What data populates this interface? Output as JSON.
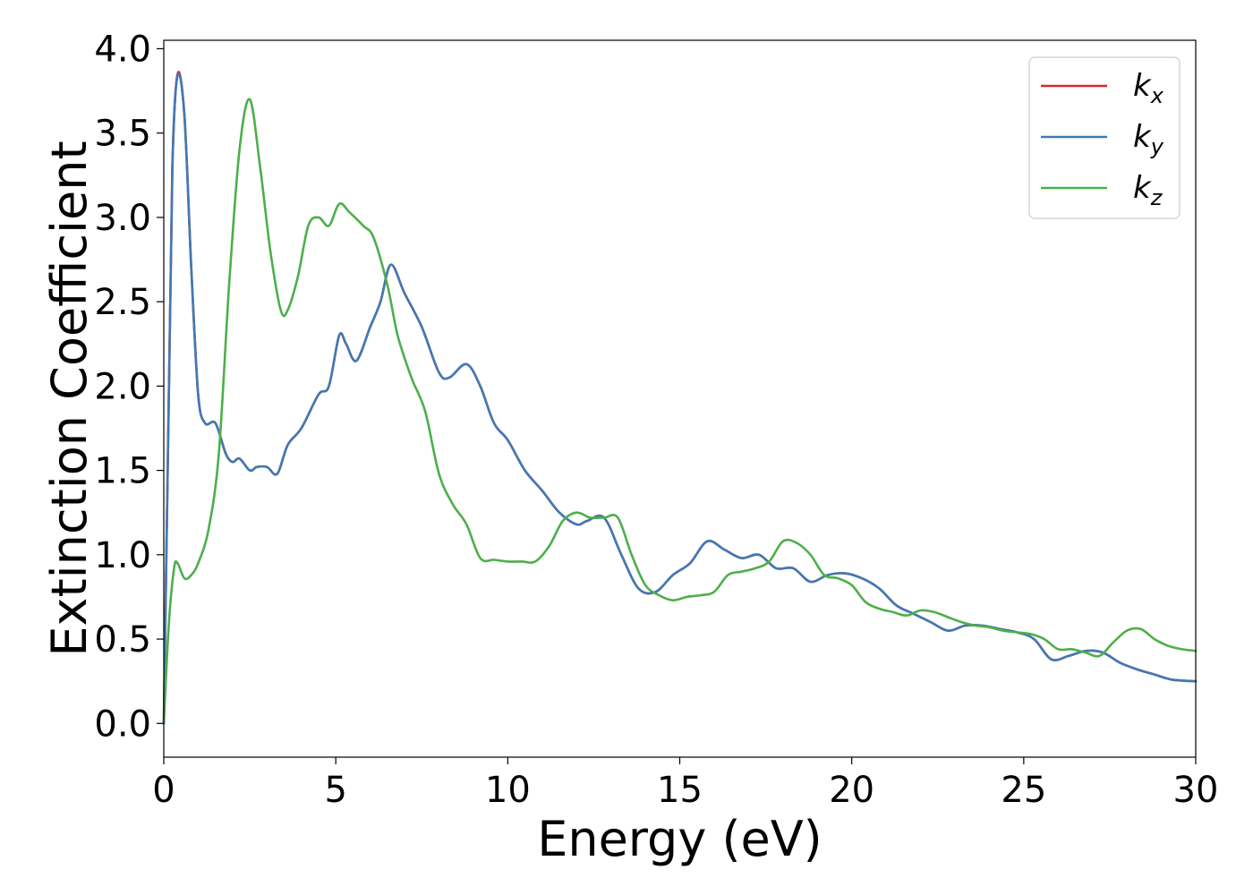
{
  "chart_data": {
    "type": "line",
    "title": "",
    "xlabel": "Energy (eV)",
    "ylabel": "Extinction Coefficient",
    "xlim": [
      0,
      30
    ],
    "ylim": [
      -0.2,
      4.05
    ],
    "xticks": [
      "0",
      "5",
      "10",
      "15",
      "20",
      "25",
      "30"
    ],
    "yticks": [
      "0.0",
      "0.5",
      "1.0",
      "1.5",
      "2.0",
      "2.5",
      "3.0",
      "3.5",
      "4.0"
    ],
    "grid": false,
    "legend_position": "top-right",
    "series": [
      {
        "name": "k",
        "subscript": "x",
        "color": "#d62728",
        "x": [
          0,
          0.15,
          0.25,
          0.4,
          0.6,
          0.8,
          1.0,
          1.2,
          1.5,
          1.8,
          2.0,
          2.2,
          2.5,
          2.7,
          3.0,
          3.3,
          3.6,
          4.0,
          4.5,
          4.8,
          5.1,
          5.3,
          5.6,
          6.0,
          6.3,
          6.6,
          7.0,
          7.5,
          8.0,
          8.3,
          8.8,
          9.2,
          9.6,
          10.0,
          10.5,
          11.0,
          11.5,
          12.0,
          12.3,
          12.8,
          13.3,
          13.8,
          14.3,
          14.8,
          15.3,
          15.8,
          16.3,
          16.8,
          17.3,
          17.8,
          18.3,
          18.8,
          19.3,
          19.8,
          20.3,
          20.8,
          21.3,
          21.8,
          22.3,
          22.8,
          23.3,
          23.8,
          24.3,
          24.8,
          25.3,
          25.8,
          26.3,
          26.8,
          27.3,
          27.8,
          28.3,
          28.8,
          29.3,
          30.0
        ],
        "values": [
          0.0,
          2.0,
          3.3,
          3.85,
          3.6,
          2.7,
          1.95,
          1.78,
          1.78,
          1.6,
          1.55,
          1.57,
          1.5,
          1.52,
          1.52,
          1.48,
          1.65,
          1.75,
          1.95,
          2.0,
          2.3,
          2.25,
          2.15,
          2.35,
          2.5,
          2.72,
          2.55,
          2.35,
          2.08,
          2.05,
          2.13,
          2.0,
          1.78,
          1.68,
          1.5,
          1.38,
          1.25,
          1.18,
          1.2,
          1.22,
          1.0,
          0.8,
          0.78,
          0.88,
          0.95,
          1.08,
          1.03,
          0.98,
          1.0,
          0.92,
          0.92,
          0.84,
          0.88,
          0.89,
          0.86,
          0.8,
          0.7,
          0.65,
          0.6,
          0.55,
          0.58,
          0.58,
          0.56,
          0.54,
          0.5,
          0.38,
          0.4,
          0.43,
          0.42,
          0.36,
          0.32,
          0.29,
          0.26,
          0.25
        ]
      },
      {
        "name": "k",
        "subscript": "y",
        "color": "#3f7ab5",
        "x": [
          0,
          0.15,
          0.25,
          0.4,
          0.6,
          0.8,
          1.0,
          1.2,
          1.5,
          1.8,
          2.0,
          2.2,
          2.5,
          2.7,
          3.0,
          3.3,
          3.6,
          4.0,
          4.5,
          4.8,
          5.1,
          5.3,
          5.6,
          6.0,
          6.3,
          6.6,
          7.0,
          7.5,
          8.0,
          8.3,
          8.8,
          9.2,
          9.6,
          10.0,
          10.5,
          11.0,
          11.5,
          12.0,
          12.3,
          12.8,
          13.3,
          13.8,
          14.3,
          14.8,
          15.3,
          15.8,
          16.3,
          16.8,
          17.3,
          17.8,
          18.3,
          18.8,
          19.3,
          19.8,
          20.3,
          20.8,
          21.3,
          21.8,
          22.3,
          22.8,
          23.3,
          23.8,
          24.3,
          24.8,
          25.3,
          25.8,
          26.3,
          26.8,
          27.3,
          27.8,
          28.3,
          28.8,
          29.3,
          30.0
        ],
        "values": [
          0.0,
          2.0,
          3.3,
          3.84,
          3.6,
          2.7,
          1.95,
          1.78,
          1.78,
          1.6,
          1.55,
          1.57,
          1.5,
          1.52,
          1.52,
          1.48,
          1.65,
          1.75,
          1.95,
          2.0,
          2.3,
          2.25,
          2.15,
          2.35,
          2.5,
          2.72,
          2.55,
          2.35,
          2.08,
          2.05,
          2.13,
          2.0,
          1.78,
          1.68,
          1.5,
          1.38,
          1.25,
          1.18,
          1.2,
          1.22,
          1.0,
          0.8,
          0.78,
          0.88,
          0.95,
          1.08,
          1.03,
          0.98,
          1.0,
          0.92,
          0.92,
          0.84,
          0.88,
          0.89,
          0.86,
          0.8,
          0.7,
          0.65,
          0.6,
          0.55,
          0.58,
          0.58,
          0.56,
          0.54,
          0.5,
          0.38,
          0.4,
          0.43,
          0.42,
          0.36,
          0.32,
          0.29,
          0.26,
          0.25
        ]
      },
      {
        "name": "k",
        "subscript": "z",
        "color": "#4daf4a",
        "x": [
          0,
          0.15,
          0.3,
          0.4,
          0.6,
          0.8,
          1.0,
          1.3,
          1.6,
          1.9,
          2.2,
          2.5,
          2.8,
          3.1,
          3.4,
          3.6,
          3.9,
          4.2,
          4.5,
          4.8,
          5.1,
          5.4,
          5.8,
          6.1,
          6.5,
          6.8,
          7.2,
          7.6,
          8.0,
          8.4,
          8.8,
          9.2,
          9.6,
          10.0,
          10.4,
          10.8,
          11.2,
          11.6,
          12.0,
          12.4,
          12.8,
          13.2,
          13.6,
          14.0,
          14.4,
          14.8,
          15.2,
          15.6,
          16.0,
          16.4,
          16.8,
          17.2,
          17.6,
          18.0,
          18.4,
          18.8,
          19.2,
          19.6,
          20.0,
          20.4,
          20.8,
          21.2,
          21.6,
          22.0,
          22.4,
          22.8,
          23.2,
          23.6,
          24.0,
          24.4,
          24.8,
          25.2,
          25.6,
          26.0,
          26.4,
          26.8,
          27.2,
          27.6,
          28.0,
          28.4,
          28.8,
          29.2,
          29.6,
          30.0
        ],
        "values": [
          0.0,
          0.6,
          0.92,
          0.95,
          0.86,
          0.88,
          0.95,
          1.15,
          1.6,
          2.6,
          3.4,
          3.7,
          3.3,
          2.8,
          2.45,
          2.45,
          2.65,
          2.95,
          3.0,
          2.95,
          3.08,
          3.03,
          2.95,
          2.88,
          2.6,
          2.3,
          2.05,
          1.85,
          1.48,
          1.3,
          1.18,
          0.98,
          0.97,
          0.96,
          0.96,
          0.96,
          1.05,
          1.2,
          1.25,
          1.22,
          1.22,
          1.22,
          1.0,
          0.82,
          0.76,
          0.73,
          0.75,
          0.76,
          0.78,
          0.88,
          0.9,
          0.92,
          0.96,
          1.08,
          1.07,
          1.0,
          0.88,
          0.86,
          0.82,
          0.72,
          0.68,
          0.66,
          0.64,
          0.67,
          0.66,
          0.63,
          0.6,
          0.58,
          0.57,
          0.55,
          0.54,
          0.53,
          0.5,
          0.44,
          0.44,
          0.42,
          0.4,
          0.48,
          0.55,
          0.56,
          0.5,
          0.46,
          0.44,
          0.43
        ]
      }
    ]
  }
}
